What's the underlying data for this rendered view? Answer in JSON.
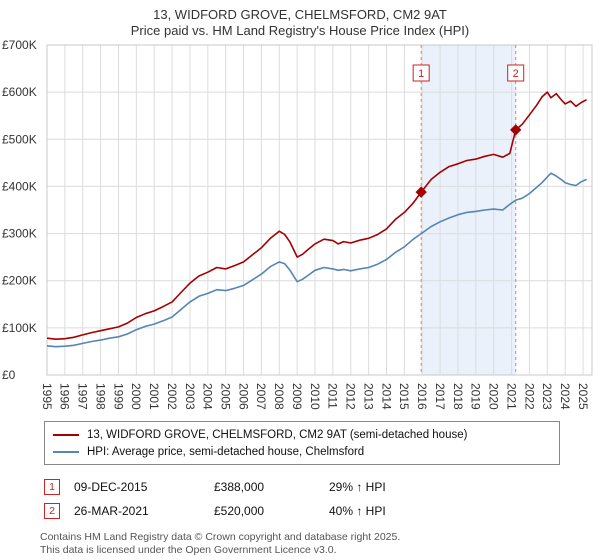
{
  "header": {
    "title": "13, WIDFORD GROVE, CHELMSFORD, CM2 9AT",
    "subtitle": "Price paid vs. HM Land Registry's House Price Index (HPI)"
  },
  "chart_data": {
    "type": "line",
    "x_range": [
      1995,
      2025.5
    ],
    "ylim": [
      0,
      700000
    ],
    "x_ticks": [
      1995,
      1996,
      1997,
      1998,
      1999,
      2000,
      2001,
      2002,
      2003,
      2004,
      2005,
      2006,
      2007,
      2008,
      2009,
      2010,
      2011,
      2012,
      2013,
      2014,
      2015,
      2016,
      2017,
      2018,
      2019,
      2020,
      2021,
      2022,
      2023,
      2024,
      2025
    ],
    "y_ticks": [
      {
        "value": 0,
        "label": "£0"
      },
      {
        "value": 100000,
        "label": "£100K"
      },
      {
        "value": 200000,
        "label": "£200K"
      },
      {
        "value": 300000,
        "label": "£300K"
      },
      {
        "value": 400000,
        "label": "£400K"
      },
      {
        "value": 500000,
        "label": "£500K"
      },
      {
        "value": 600000,
        "label": "£600K"
      },
      {
        "value": 700000,
        "label": "£700K"
      }
    ],
    "grid": true,
    "legend_position": "bottom",
    "shaded_region": {
      "from": 2015.94,
      "to": 2021.23,
      "color": "#eaf1fa"
    },
    "sale_line_color": "#d98080",
    "series": [
      {
        "name": "13, WIDFORD GROVE, CHELMSFORD, CM2 9AT (semi-detached house)",
        "color": "#a40000",
        "x": [
          1995,
          1995.5,
          1996,
          1996.5,
          1997,
          1997.5,
          1998,
          1998.5,
          1999,
          1999.5,
          2000,
          2000.5,
          2001,
          2001.5,
          2002,
          2002.5,
          2003,
          2003.5,
          2004,
          2004.5,
          2005,
          2005.5,
          2006,
          2006.5,
          2007,
          2007.5,
          2008,
          2008.3,
          2008.6,
          2009,
          2009.3,
          2009.6,
          2010,
          2010.5,
          2011,
          2011.3,
          2011.6,
          2012,
          2012.5,
          2013,
          2013.5,
          2014,
          2014.5,
          2015,
          2015.5,
          2015.94,
          2016.5,
          2017,
          2017.5,
          2018,
          2018.5,
          2019,
          2019.5,
          2020,
          2020.5,
          2020.9,
          2021.23,
          2021.6,
          2022,
          2022.4,
          2022.7,
          2023,
          2023.2,
          2023.5,
          2023.8,
          2024,
          2024.3,
          2024.6,
          2024.9,
          2025.2
        ],
        "values": [
          78000,
          76000,
          77000,
          80000,
          85000,
          90000,
          94000,
          98000,
          102000,
          110000,
          122000,
          130000,
          136000,
          145000,
          155000,
          175000,
          195000,
          210000,
          218000,
          228000,
          225000,
          232000,
          240000,
          255000,
          270000,
          290000,
          305000,
          298000,
          282000,
          250000,
          256000,
          266000,
          278000,
          288000,
          285000,
          278000,
          283000,
          280000,
          286000,
          290000,
          298000,
          310000,
          330000,
          345000,
          365000,
          388000,
          415000,
          430000,
          442000,
          448000,
          455000,
          458000,
          464000,
          468000,
          462000,
          470000,
          520000,
          532000,
          552000,
          572000,
          590000,
          600000,
          588000,
          597000,
          583000,
          575000,
          581000,
          570000,
          578000,
          584000
        ]
      },
      {
        "name": "HPI: Average price, semi-detached house, Chelmsford",
        "color": "#5585b5",
        "x": [
          1995,
          1995.5,
          1996,
          1996.5,
          1997,
          1997.5,
          1998,
          1998.5,
          1999,
          1999.5,
          2000,
          2000.5,
          2001,
          2001.5,
          2002,
          2002.5,
          2003,
          2003.5,
          2004,
          2004.5,
          2005,
          2005.5,
          2006,
          2006.5,
          2007,
          2007.5,
          2008,
          2008.3,
          2008.6,
          2009,
          2009.3,
          2009.6,
          2010,
          2010.5,
          2011,
          2011.3,
          2011.6,
          2012,
          2012.5,
          2013,
          2013.5,
          2014,
          2014.5,
          2015,
          2015.5,
          2015.94,
          2016.5,
          2017,
          2017.5,
          2018,
          2018.5,
          2019,
          2019.5,
          2020,
          2020.5,
          2020.9,
          2021.23,
          2021.6,
          2022,
          2022.4,
          2022.7,
          2023,
          2023.2,
          2023.5,
          2023.8,
          2024,
          2024.3,
          2024.6,
          2024.9,
          2025.2
        ],
        "values": [
          62000,
          60000,
          61000,
          63000,
          67000,
          71000,
          74000,
          78000,
          81000,
          87000,
          96000,
          103000,
          108000,
          115000,
          123000,
          139000,
          155000,
          167000,
          173000,
          181000,
          179000,
          184000,
          190000,
          202000,
          214000,
          230000,
          240000,
          236000,
          222000,
          198000,
          203000,
          211000,
          222000,
          228000,
          225000,
          222000,
          224000,
          221000,
          225000,
          228000,
          235000,
          245000,
          260000,
          272000,
          288000,
          300000,
          315000,
          325000,
          333000,
          340000,
          345000,
          347000,
          350000,
          352000,
          350000,
          362000,
          371000,
          375000,
          385000,
          398000,
          408000,
          420000,
          428000,
          422000,
          414000,
          408000,
          404000,
          402000,
          410000,
          415000
        ]
      }
    ],
    "markers": [
      {
        "label": "1",
        "x": 2015.94,
        "value": 388000
      },
      {
        "label": "2",
        "x": 2021.23,
        "value": 520000
      }
    ]
  },
  "legend": {
    "items": [
      {
        "label": "13, WIDFORD GROVE, CHELMSFORD, CM2 9AT (semi-detached house)",
        "color": "#a40000"
      },
      {
        "label": "HPI: Average price, semi-detached house, Chelmsford",
        "color": "#5585b5"
      }
    ]
  },
  "transactions": [
    {
      "num": "1",
      "date": "09-DEC-2015",
      "price": "£388,000",
      "hpi_change": "29% ↑ HPI"
    },
    {
      "num": "2",
      "date": "26-MAR-2021",
      "price": "£520,000",
      "hpi_change": "40% ↑ HPI"
    }
  ],
  "footer": {
    "line1": "Contains HM Land Registry data © Crown copyright and database right 2025.",
    "line2": "This data is licensed under the Open Government Licence v3.0."
  }
}
